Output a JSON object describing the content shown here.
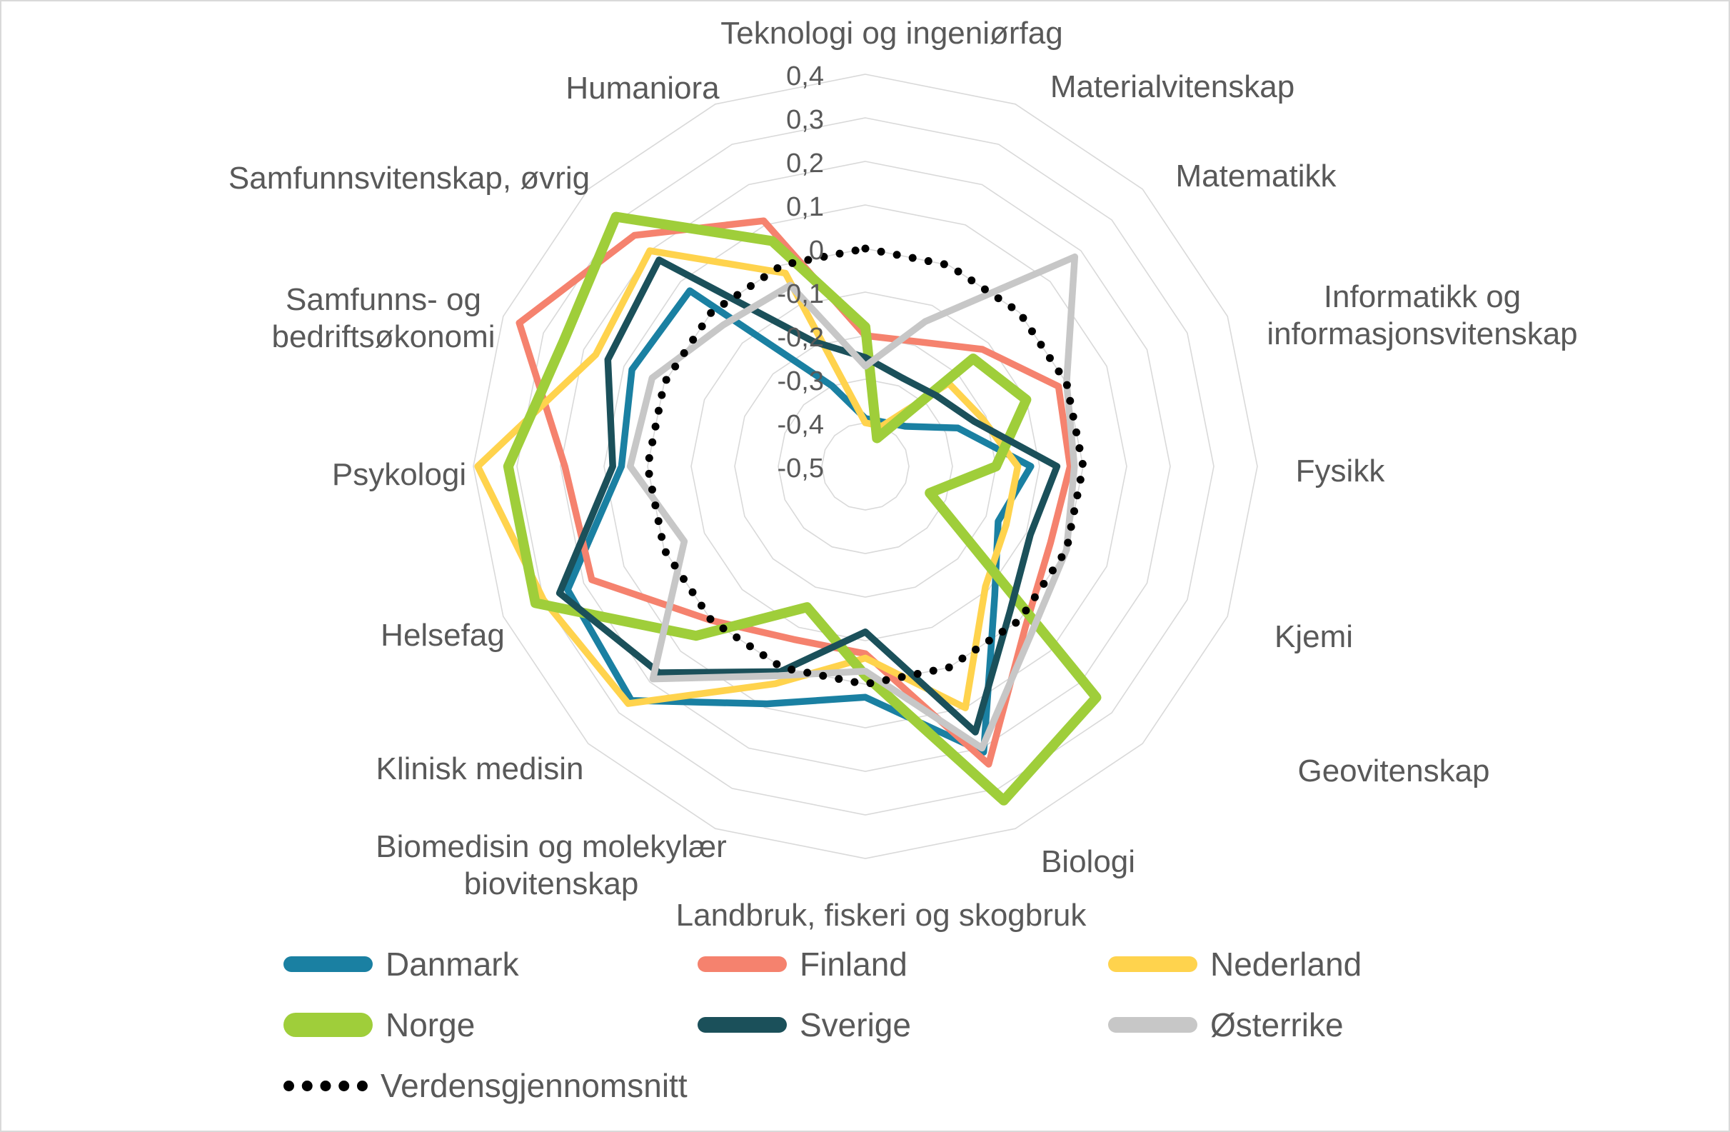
{
  "chart_data": {
    "type": "radar",
    "title": "",
    "min": -0.5,
    "max": 0.4,
    "grid": "concentric-rings-no-spokes",
    "legend_position": "bottom",
    "axis_ticks": [
      {
        "v": 0.4,
        "label": "0,4"
      },
      {
        "v": 0.3,
        "label": "0,3"
      },
      {
        "v": 0.2,
        "label": "0,2"
      },
      {
        "v": 0.1,
        "label": "0,1"
      },
      {
        "v": 0.0,
        "label": "0"
      },
      {
        "v": -0.1,
        "label": "-0,1"
      },
      {
        "v": -0.2,
        "label": "-0,2"
      },
      {
        "v": -0.3,
        "label": "-0,3"
      },
      {
        "v": -0.4,
        "label": "-0,4"
      },
      {
        "v": -0.5,
        "label": "-0,5"
      }
    ],
    "categories": [
      "Teknologi og ingeniørfag",
      "Materialvitenskap",
      "Matematikk",
      "Informatikk og informasjonsvitenskap",
      "Fysikk",
      "Kjemi",
      "Geovitenskap",
      "Biologi",
      "Landbruk, fiskeri og skogbruk",
      "Biomedisin og molekylær biovitenskap",
      "Klinisk medisin",
      "Helsefag",
      "Psykologi",
      "Samfunns- og bedriftsøkonomi",
      "Samfunnsvitenskap, øvrig",
      "Humaniora"
    ],
    "categories_display": [
      "Teknologi og ingeniørfag",
      "Materialvitenskap",
      "Matematikk",
      "Informatikk og\ninformasjonsvitenskap",
      "Fysikk",
      "Kjemi",
      "Geovitenskap",
      "Biologi",
      "Landbruk, fiskeri og skogbruk",
      "Biomedisin og molekylær\nbiovitenskap",
      "Klinisk medisin",
      "Helsefag",
      "Psykologi",
      "Samfunns- og\nbedriftsøkonomi",
      "Samfunnsvitenskap, øvrig",
      "Humaniora"
    ],
    "series": [
      {
        "name": "Danmark",
        "color": "#1A80A2",
        "width": 9.5,
        "dotted": false,
        "values": [
          -0.39,
          -0.39,
          -0.37,
          -0.27,
          -0.12,
          -0.17,
          -0.08,
          0.21,
          0.03,
          0.09,
          0.26,
          0.24,
          0.06,
          0.08,
          0.07,
          -0.3
        ]
      },
      {
        "name": "Finland",
        "color": "#F5826E",
        "width": 9.5,
        "dotted": false,
        "values": [
          -0.2,
          -0.19,
          -0.12,
          -0.02,
          -0.03,
          -0.04,
          0.02,
          0.24,
          -0.07,
          -0.07,
          0.0,
          0.18,
          0.19,
          0.36,
          0.25,
          0.11
        ]
      },
      {
        "name": "Nederland",
        "color": "#FFD34D",
        "width": 9.5,
        "dotted": false,
        "values": [
          -0.4,
          -0.4,
          -0.23,
          -0.21,
          -0.15,
          -0.15,
          -0.11,
          0.1,
          -0.06,
          0.04,
          0.27,
          0.3,
          0.39,
          0.17,
          0.2,
          -0.02
        ]
      },
      {
        "name": "Norge",
        "color": "#9FCE3A",
        "width": 14,
        "dotted": false,
        "values": [
          -0.18,
          -0.43,
          -0.15,
          -0.1,
          -0.2,
          -0.34,
          0.25,
          0.33,
          -0.02,
          -0.15,
          0.05,
          0.32,
          0.32,
          0.25,
          0.31,
          0.06
        ]
      },
      {
        "name": "Sverige",
        "color": "#1B505A",
        "width": 9.5,
        "dotted": false,
        "values": [
          -0.25,
          -0.28,
          -0.27,
          -0.23,
          -0.06,
          -0.09,
          -0.03,
          0.16,
          -0.12,
          0.01,
          0.17,
          0.26,
          0.08,
          0.14,
          0.17,
          -0.19
        ]
      },
      {
        "name": "Østerrike",
        "color": "#C7C7C7",
        "width": 9.5,
        "dotted": false,
        "values": [
          -0.27,
          -0.14,
          0.18,
          0.0,
          -0.02,
          0.0,
          0.04,
          0.2,
          -0.03,
          0.02,
          0.19,
          -0.05,
          0.04,
          0.03,
          -0.04,
          -0.05
        ]
      },
      {
        "name": "Verdensgjennomsnitt",
        "color": "#000000",
        "width": 11,
        "dotted": true,
        "values": [
          0.0,
          0.0,
          0.0,
          0.0,
          0.0,
          0.0,
          0.0,
          0.0,
          0.0,
          0.0,
          0.0,
          0.0,
          0.0,
          0.0,
          0.0,
          0.0
        ]
      }
    ]
  },
  "colors": {
    "grid": "#D9D9D9",
    "text": "#595959",
    "background": "#FFFFFF"
  }
}
